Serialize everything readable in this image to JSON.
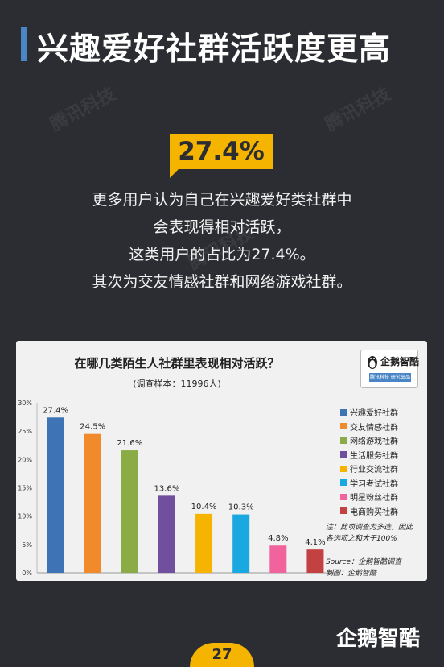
{
  "header": {
    "title": "兴趣爱好社群活跃度更高"
  },
  "watermark": {
    "text": "腾讯科技"
  },
  "highlight": {
    "value": "27.4%"
  },
  "description": {
    "lines": [
      "更多用户认为自己在兴趣爱好类社群中",
      "会表现得相对活跃，",
      "这类用户的占比为27.4%。",
      "其次为交友情感社群和网络游戏社群。"
    ]
  },
  "chart_logo": {
    "text": "企鹅智酷",
    "sub": "腾讯科技 研究出品"
  },
  "chart_note": {
    "line1": "注：此项调查为多选，因此",
    "line2": "各选项之和大于100%"
  },
  "chart_source": {
    "line1": "Source：企鹅智酷调查",
    "line2": "制图：企鹅智酷"
  },
  "footer": {
    "page": "27",
    "brand": "企鹅智酷"
  },
  "chart_data": {
    "type": "bar",
    "title": "在哪几类陌生人社群里表现相对活跃？",
    "subtitle": "(调查样本：11996人)",
    "categories": [
      "兴趣爱好社群",
      "交友情感社群",
      "网络游戏社群",
      "生活服务社群",
      "行业交流社群",
      "学习考试社群",
      "明星粉丝社群",
      "电商购买社群"
    ],
    "values": [
      27.4,
      24.5,
      21.6,
      13.6,
      10.4,
      10.3,
      4.8,
      4.1
    ],
    "data_labels": [
      "27.4%",
      "24.5%",
      "21.6%",
      "13.6%",
      "10.4%",
      "10.3%",
      "4.8%",
      "4.1%"
    ],
    "colors": [
      "#3e73b6",
      "#f08a2a",
      "#8aab46",
      "#6f4f9e",
      "#f6b400",
      "#1aa8e0",
      "#f0639d",
      "#c34141"
    ],
    "ylim": [
      0,
      30
    ],
    "yticks": [
      "0%",
      "5%",
      "10%",
      "15%",
      "20%",
      "25%",
      "30%"
    ],
    "legend_position": "right",
    "grid": false
  }
}
